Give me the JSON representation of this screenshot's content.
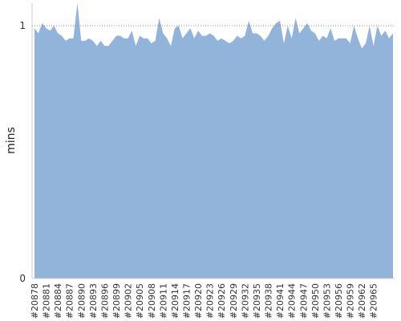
{
  "chart_data": {
    "type": "area",
    "ylabel": "mins",
    "ylim": [
      0,
      1.1
    ],
    "y_ticks": [
      {
        "value": 0,
        "label": "0"
      },
      {
        "value": 1,
        "label": "1"
      }
    ],
    "reference_line": 1,
    "grid": false,
    "colors": {
      "fill": "#92b4db",
      "axis": "#cccccc",
      "reference": "#888888"
    },
    "series": [
      {
        "values": [
          0.99,
          0.97,
          1.01,
          0.99,
          0.98,
          1.0,
          0.97,
          0.96,
          0.94,
          0.95,
          0.95,
          1.09,
          0.94,
          0.94,
          0.95,
          0.94,
          0.92,
          0.94,
          0.92,
          0.92,
          0.94,
          0.96,
          0.96,
          0.95,
          0.95,
          0.98,
          0.92,
          0.96,
          0.95,
          0.95,
          0.93,
          0.94,
          1.03,
          0.97,
          0.95,
          0.92,
          0.99,
          1.0,
          0.95,
          0.97,
          0.99,
          0.95,
          0.98,
          0.96,
          0.96,
          0.97,
          0.96,
          0.94,
          0.95,
          0.94,
          0.93,
          0.94,
          0.96,
          0.95,
          0.96,
          1.02,
          0.97,
          0.97,
          0.96,
          0.94,
          0.96,
          0.99,
          1.01,
          1.02,
          0.93,
          1.0,
          0.95,
          1.03,
          0.97,
          0.99,
          1.01,
          0.98,
          0.97,
          0.94,
          0.96,
          0.95,
          0.99,
          0.94,
          0.95,
          0.95,
          0.95,
          0.93,
          1.0,
          0.95,
          0.91,
          0.93,
          1.0,
          0.92,
          1.0,
          0.96,
          0.98,
          0.95,
          0.97
        ]
      }
    ],
    "x_start": 20878,
    "x_count": 93,
    "x_tick_step": 3,
    "x_tick_labels": [
      "#20878",
      "#20881",
      "#20884",
      "#20887",
      "#20890",
      "#20893",
      "#20896",
      "#20899",
      "#20902",
      "#20905",
      "#20908",
      "#20911",
      "#20914",
      "#20917",
      "#20920",
      "#20923",
      "#20926",
      "#20929",
      "#20932",
      "#20935",
      "#20938",
      "#20941",
      "#20944",
      "#20947",
      "#20950",
      "#20953",
      "#20956",
      "#20959",
      "#20962",
      "#20965"
    ]
  }
}
